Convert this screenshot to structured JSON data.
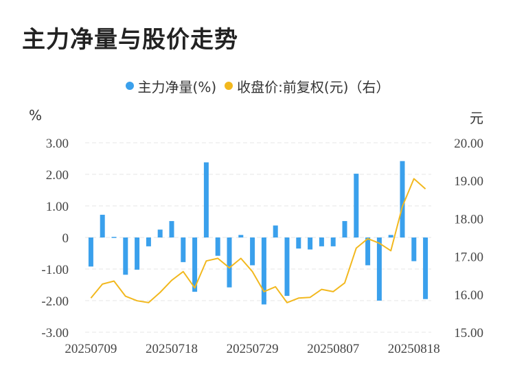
{
  "page": {
    "title": "主力净量与股价走势"
  },
  "legend": {
    "series1": {
      "label": "主力净量(%)",
      "color": "#3aa0ec"
    },
    "series2": {
      "label": "收盘价:前复权(元)（右）",
      "color": "#f2b81e"
    }
  },
  "units": {
    "left": "%",
    "right": "元"
  },
  "chart_data": {
    "type": "bar+line",
    "title": "主力净量与股价走势",
    "x_tick_labels": [
      "20250709",
      "20250718",
      "20250729",
      "20250807",
      "20250818"
    ],
    "x_tick_indices": [
      0,
      7,
      14,
      21,
      28
    ],
    "y_left": {
      "label": "%",
      "ticks": [
        "3.00",
        "2.00",
        "1.00",
        "0",
        "-1.00",
        "-2.00",
        "-3.00"
      ],
      "range": [
        -3,
        3
      ]
    },
    "y_right": {
      "label": "元",
      "ticks": [
        "20.00",
        "19.00",
        "18.00",
        "17.00",
        "16.00",
        "15.00"
      ],
      "range": [
        15,
        20
      ]
    },
    "grid": true,
    "legend_position": "top",
    "series": [
      {
        "name": "主力净量(%)",
        "type": "bar",
        "axis": "left",
        "color": "#3aa0ec",
        "values": [
          -0.92,
          0.72,
          0.02,
          -1.18,
          -1.02,
          -0.28,
          0.25,
          0.52,
          -0.78,
          -1.72,
          2.38,
          -0.58,
          -1.58,
          0.08,
          -0.88,
          -2.12,
          0.38,
          -1.85,
          -0.35,
          -0.38,
          -0.28,
          -0.28,
          0.52,
          2.02,
          -0.88,
          -2.0,
          0.08,
          2.42,
          -0.75,
          -1.95
        ]
      },
      {
        "name": "收盘价:前复权(元)（右）",
        "type": "line",
        "axis": "right",
        "color": "#f2b81e",
        "values": [
          15.9,
          16.27,
          16.35,
          15.95,
          15.83,
          15.78,
          16.05,
          16.37,
          16.6,
          16.17,
          16.88,
          16.95,
          16.7,
          16.95,
          16.6,
          16.07,
          16.2,
          15.78,
          15.9,
          15.92,
          16.13,
          16.07,
          16.3,
          17.22,
          17.47,
          17.35,
          17.15,
          18.32,
          19.05,
          18.78
        ]
      }
    ]
  }
}
